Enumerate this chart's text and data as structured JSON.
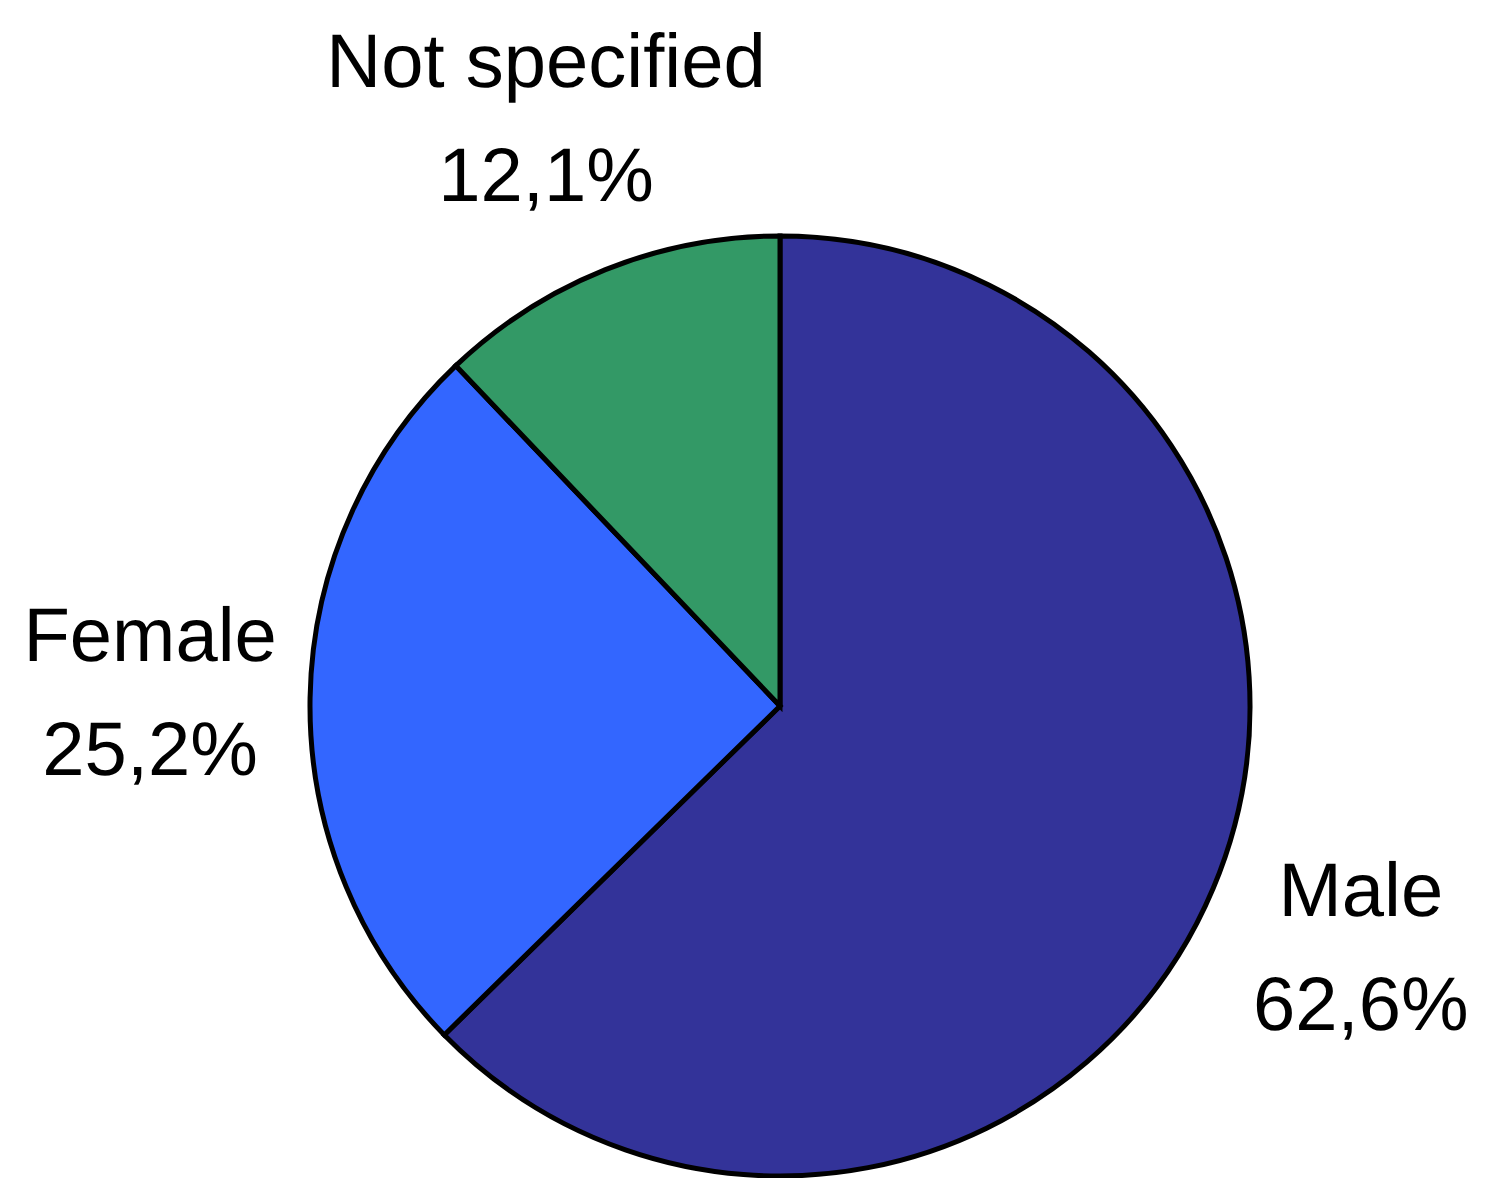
{
  "chart_data": {
    "type": "pie",
    "categories": [
      "Male",
      "Female",
      "Not specified"
    ],
    "values": [
      62.6,
      25.2,
      12.1
    ],
    "value_labels": [
      "62,6%",
      "25,2%",
      "12,1%"
    ],
    "colors": [
      "#333399",
      "#3366ff",
      "#339966"
    ]
  }
}
